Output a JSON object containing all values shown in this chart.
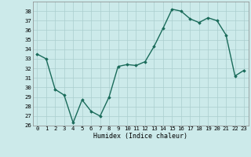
{
  "x": [
    0,
    1,
    2,
    3,
    4,
    5,
    6,
    7,
    8,
    9,
    10,
    11,
    12,
    13,
    14,
    15,
    16,
    17,
    18,
    19,
    20,
    21,
    22,
    23
  ],
  "y": [
    33.5,
    33.0,
    29.8,
    29.2,
    26.3,
    28.7,
    27.5,
    27.0,
    29.0,
    32.2,
    32.4,
    32.3,
    32.7,
    34.3,
    36.2,
    38.2,
    38.0,
    37.2,
    36.8,
    37.3,
    37.0,
    35.5,
    31.2,
    31.8
  ],
  "xlabel": "Humidex (Indice chaleur)",
  "xlim": [
    -0.5,
    23.5
  ],
  "ylim": [
    26,
    39
  ],
  "yticks": [
    26,
    27,
    28,
    29,
    30,
    31,
    32,
    33,
    34,
    35,
    36,
    37,
    38
  ],
  "xticks": [
    0,
    1,
    2,
    3,
    4,
    5,
    6,
    7,
    8,
    9,
    10,
    11,
    12,
    13,
    14,
    15,
    16,
    17,
    18,
    19,
    20,
    21,
    22,
    23
  ],
  "line_color": "#1a6b5a",
  "marker": "D",
  "marker_size": 1.8,
  "line_width": 1.0,
  "bg_color": "#cceaea",
  "grid_color": "#aacece",
  "axis_fontsize": 6.0,
  "tick_fontsize": 5.2
}
